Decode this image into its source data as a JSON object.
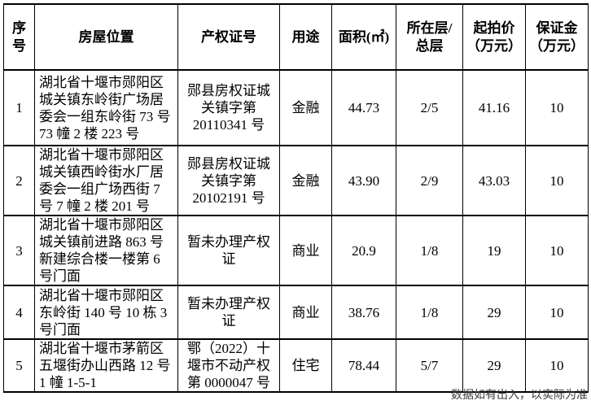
{
  "header": {
    "seq": "序号",
    "location": "房屋位置",
    "cert": "产权证号",
    "usage": "用途",
    "area": "面积(㎡)",
    "floor": "所在层/\n总层",
    "start_price": "起拍价\n（万元）",
    "deposit": "保证金\n（万元）"
  },
  "rows": [
    {
      "seq": "1",
      "location": "湖北省十堰市郧阳区城关镇东岭街广场居委会一组东岭街 73 号 73 幢 2 楼 223 号",
      "cert": "郧县房权证城关镇字第 20110341 号",
      "usage": "金融",
      "area": "44.73",
      "floor": "2/5",
      "start_price": "41.16",
      "deposit": "10"
    },
    {
      "seq": "2",
      "location": "湖北省十堰市郧阳区城关镇西岭街水厂居委会一组广场西街 7 号 7 幢 2 楼 201 号",
      "cert": "郧县房权证城关镇字第 20102191 号",
      "usage": "金融",
      "area": "43.90",
      "floor": "2/9",
      "start_price": "43.03",
      "deposit": "10"
    },
    {
      "seq": "3",
      "location": "湖北省十堰市郧阳区城关镇前进路 863 号新建综合楼一楼第 6 号门面",
      "cert": "暂未办理产权证",
      "usage": "商业",
      "area": "20.9",
      "floor": "1/8",
      "start_price": "19",
      "deposit": "10"
    },
    {
      "seq": "4",
      "location": "湖北省十堰市郧阳区东岭街 140 号 10 栋 3 号门面",
      "cert": "暂未办理产权证",
      "usage": "商业",
      "area": "38.76",
      "floor": "1/8",
      "start_price": "29",
      "deposit": "10"
    },
    {
      "seq": "5",
      "location": "湖北省十堰市茅箭区五堰街办山西路 12 号 1 幢 1-5-1",
      "cert": "鄂（2022）十堰市不动产权第 0000047 号",
      "usage": "住宅",
      "area": "78.44",
      "floor": "5/7",
      "start_price": "29",
      "deposit": "10"
    }
  ],
  "footer": {
    "note": "数据如有出入，以实际为准"
  }
}
